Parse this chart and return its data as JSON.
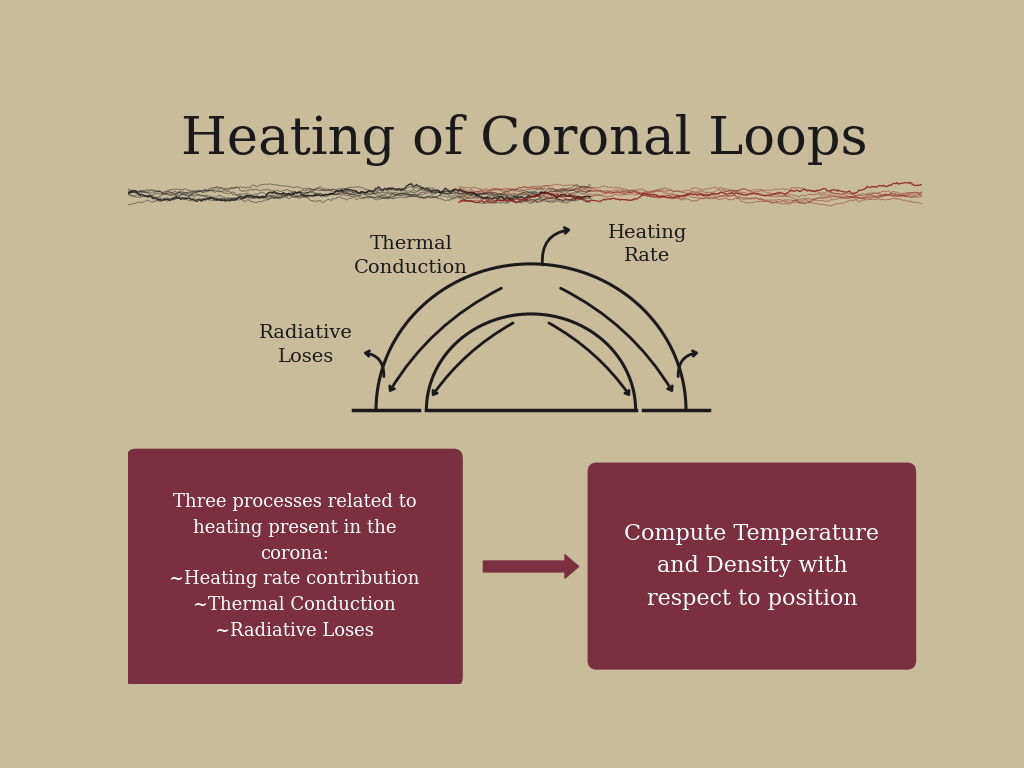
{
  "title": "Heating of Coronal Loops",
  "bg_color": "#c8bc9a",
  "title_color": "#1a1a1a",
  "title_fontsize": 38,
  "box_color": "#7a3040",
  "box_text_color": "#ffffff",
  "box1_text": "Three processes related to\nheating present in the\ncorona:\n~Heating rate contribution\n~Thermal Conduction\n~Radiative Loses",
  "box2_text": "Compute Temperature\nand Density with\nrespect to position",
  "label_thermal": "Thermal\nConduction",
  "label_heating": "Heating\nRate",
  "label_radiative": "Radiative\nLoses",
  "loop_color": "#1a1a1a",
  "arrow_color": "#7a3040"
}
